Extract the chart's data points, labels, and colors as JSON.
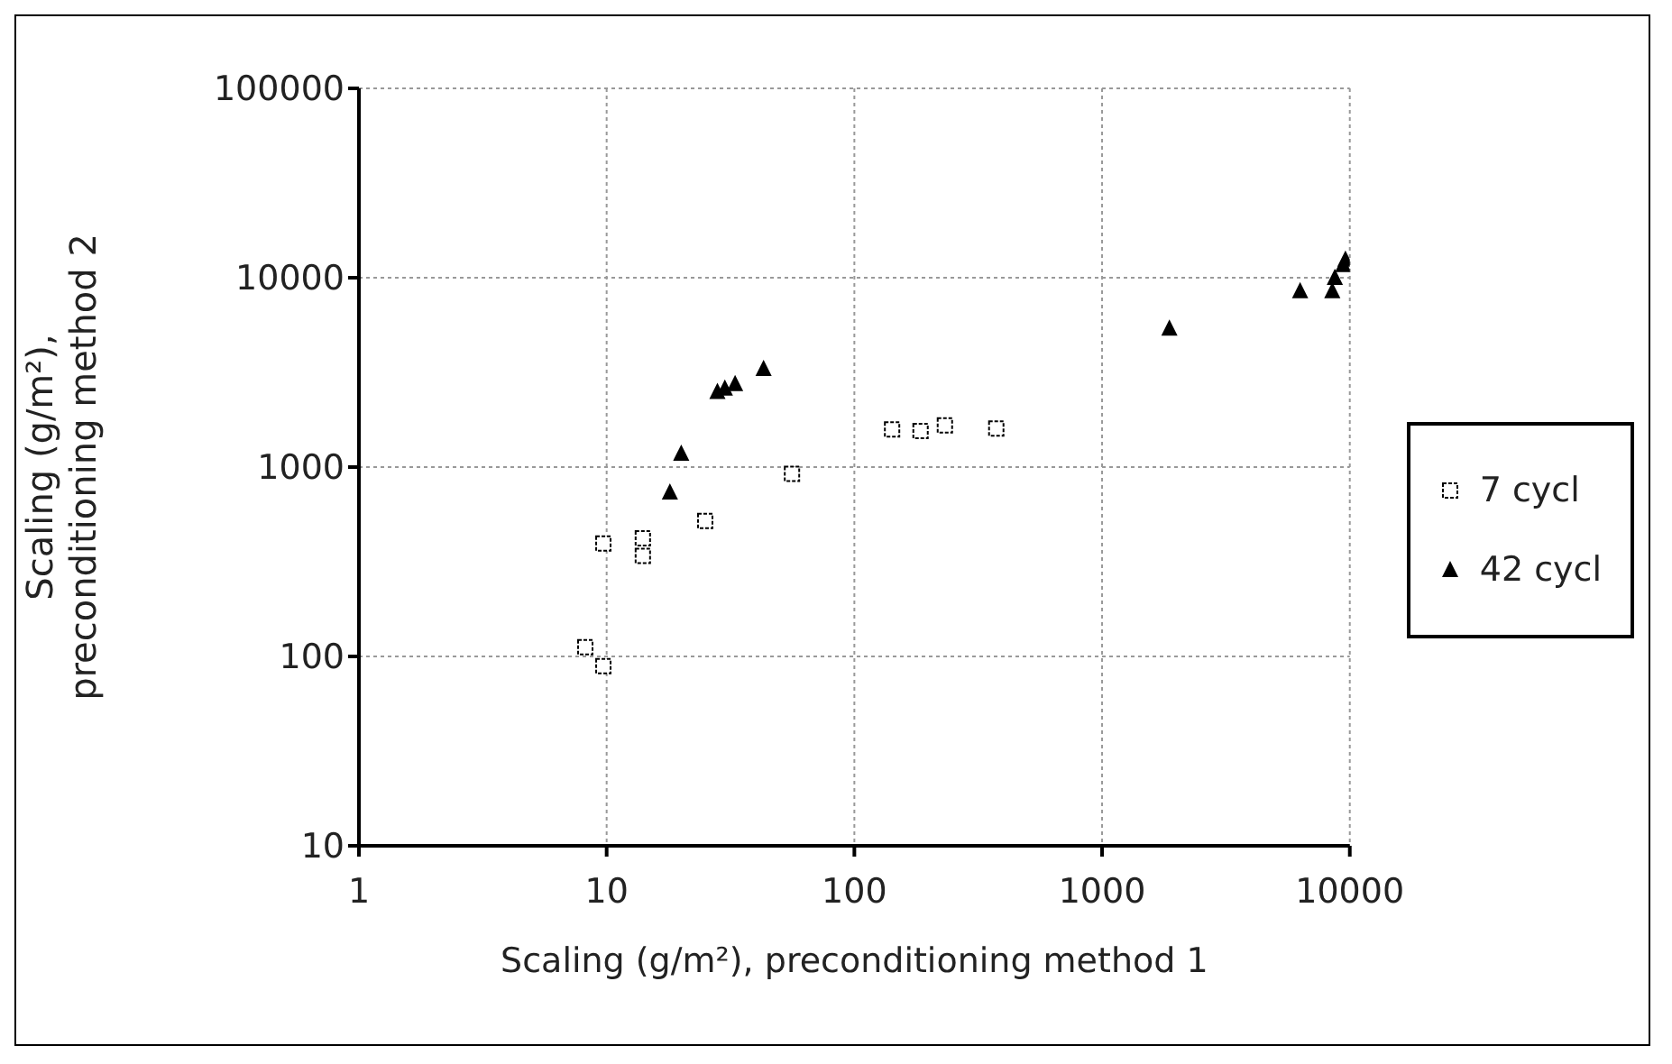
{
  "chart_data": {
    "type": "scatter",
    "xlabel": "Scaling (g/m²), preconditioning method 1",
    "ylabel": "Scaling (g/m²), preconditioning method 2",
    "log": "xy",
    "xlim": [
      1,
      10000
    ],
    "ylim": [
      10,
      100000
    ],
    "xticks": [
      1,
      10,
      100,
      1000,
      10000
    ],
    "yticks": [
      10,
      100,
      1000,
      10000,
      100000
    ],
    "grid": true,
    "legend": "right",
    "series": [
      {
        "name": "7 cycl",
        "color": "#000000",
        "marker": "square",
        "x": [
          8.2,
          9.7,
          9.7,
          14,
          14,
          25,
          56,
          142,
          185,
          232,
          374
        ],
        "values": [
          112,
          89,
          395,
          420,
          340,
          520,
          920,
          1580,
          1550,
          1660,
          1600
        ]
      },
      {
        "name": "42 cycl",
        "color": "#000000",
        "marker": "triangle",
        "x": [
          18,
          20,
          28,
          30,
          33,
          43,
          1870,
          6300,
          8500,
          8700,
          9400,
          9600
        ],
        "values": [
          735,
          1180,
          2500,
          2600,
          2750,
          3300,
          5400,
          8500,
          8500,
          10000,
          11700,
          12500
        ]
      }
    ]
  }
}
